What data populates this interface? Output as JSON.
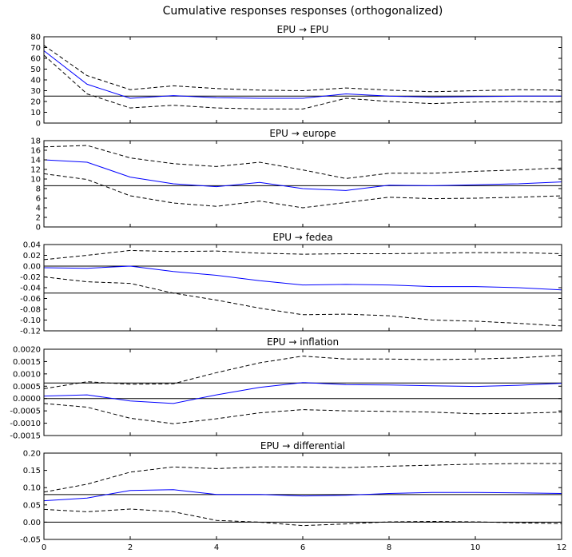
{
  "title": "Cumulative responses responses (orthogonalized)",
  "colors": {
    "irf": "#0000ff",
    "band": "#000000",
    "axis": "#000000"
  },
  "chart_data": [
    {
      "type": "line",
      "title": "EPU → EPU",
      "x": [
        0,
        1,
        2,
        3,
        4,
        5,
        6,
        7,
        8,
        9,
        10,
        11,
        12
      ],
      "xlim": [
        0,
        12
      ],
      "ylim": [
        0,
        80
      ],
      "yticks": [
        0,
        10,
        20,
        30,
        40,
        50,
        60,
        70,
        80
      ],
      "ytick_labels": [
        "0",
        "10",
        "20",
        "30",
        "40",
        "50",
        "60",
        "70",
        "80"
      ],
      "hlines": [
        25
      ],
      "series": [
        {
          "role": "irf",
          "values": [
            67,
            36,
            23,
            25.5,
            23.5,
            23,
            23,
            27,
            25,
            24,
            24.5,
            25,
            25
          ]
        },
        {
          "role": "upper",
          "values": [
            72,
            44,
            31,
            34.5,
            32,
            30.5,
            30,
            32.5,
            30.5,
            29,
            30,
            31,
            30.5
          ]
        },
        {
          "role": "lower",
          "values": [
            63,
            27,
            14,
            16.5,
            14,
            13,
            13,
            23,
            20,
            18,
            19.5,
            20,
            19.5
          ]
        }
      ]
    },
    {
      "type": "line",
      "title": "EPU → europe",
      "x": [
        0,
        1,
        2,
        3,
        4,
        5,
        6,
        7,
        8,
        9,
        10,
        11,
        12
      ],
      "xlim": [
        0,
        12
      ],
      "ylim": [
        0,
        18
      ],
      "yticks": [
        0,
        2,
        4,
        6,
        8,
        10,
        12,
        14,
        16,
        18
      ],
      "ytick_labels": [
        "0",
        "2",
        "4",
        "6",
        "8",
        "10",
        "12",
        "14",
        "16",
        "18"
      ],
      "hlines": [
        8.6
      ],
      "series": [
        {
          "role": "irf",
          "values": [
            14,
            13.5,
            10.4,
            9,
            8.4,
            9.3,
            8,
            7.6,
            8.7,
            8.6,
            8.8,
            9,
            9.4
          ]
        },
        {
          "role": "upper",
          "values": [
            16.7,
            17,
            14.4,
            13.2,
            12.6,
            13.5,
            11.9,
            10.1,
            11.2,
            11.2,
            11.6,
            11.9,
            12.3
          ]
        },
        {
          "role": "lower",
          "values": [
            11.1,
            9.9,
            6.5,
            5,
            4.3,
            5.4,
            4,
            5.1,
            6.2,
            5.9,
            6,
            6.2,
            6.5
          ]
        }
      ]
    },
    {
      "type": "line",
      "title": "EPU → fedea",
      "x": [
        0,
        1,
        2,
        3,
        4,
        5,
        6,
        7,
        8,
        9,
        10,
        11,
        12
      ],
      "xlim": [
        0,
        12
      ],
      "ylim": [
        -0.12,
        0.04
      ],
      "yticks": [
        -0.12,
        -0.1,
        -0.08,
        -0.06,
        -0.04,
        -0.02,
        0,
        0.02,
        0.04
      ],
      "ytick_labels": [
        "-0.12",
        "-0.10",
        "-0.08",
        "-0.06",
        "-0.04",
        "-0.02",
        "0.00",
        "0.02",
        "0.04"
      ],
      "hlines": [
        0,
        -0.05
      ],
      "series": [
        {
          "role": "irf",
          "values": [
            -0.003,
            -0.004,
            0,
            -0.01,
            -0.017,
            -0.027,
            -0.035,
            -0.034,
            -0.035,
            -0.038,
            -0.038,
            -0.04,
            -0.044
          ]
        },
        {
          "role": "upper",
          "values": [
            0.012,
            0.02,
            0.029,
            0.027,
            0.028,
            0.024,
            0.022,
            0.023,
            0.023,
            0.024,
            0.025,
            0.025,
            0.023
          ]
        },
        {
          "role": "lower",
          "values": [
            -0.02,
            -0.029,
            -0.032,
            -0.05,
            -0.063,
            -0.078,
            -0.09,
            -0.089,
            -0.092,
            -0.1,
            -0.102,
            -0.106,
            -0.111
          ]
        }
      ]
    },
    {
      "type": "line",
      "title": "EPU → inflation",
      "x": [
        0,
        1,
        2,
        3,
        4,
        5,
        6,
        7,
        8,
        9,
        10,
        11,
        12
      ],
      "xlim": [
        0,
        12
      ],
      "ylim": [
        -0.0015,
        0.002
      ],
      "yticks": [
        -0.0015,
        -0.001,
        -0.0005,
        0,
        0.0005,
        0.001,
        0.0015,
        0.002
      ],
      "ytick_labels": [
        "-0.0015",
        "-0.0010",
        "-0.0005",
        "0.0000",
        "0.0005",
        "0.0010",
        "0.0015",
        "0.0020"
      ],
      "hlines": [
        0,
        0.00063
      ],
      "series": [
        {
          "role": "irf",
          "values": [
            0.0001,
            0.00015,
            -0.0001,
            -0.0002,
            0.00015,
            0.00045,
            0.00065,
            0.00056,
            0.00055,
            0.00052,
            0.00049,
            0.00054,
            0.00062
          ]
        },
        {
          "role": "upper",
          "values": [
            0.0004,
            0.00068,
            0.00058,
            0.0006,
            0.00105,
            0.00145,
            0.00172,
            0.0016,
            0.0016,
            0.00158,
            0.0016,
            0.00165,
            0.00175
          ]
        },
        {
          "role": "lower",
          "values": [
            -0.0002,
            -0.00035,
            -0.0008,
            -0.00102,
            -0.00082,
            -0.00058,
            -0.00045,
            -0.0005,
            -0.00052,
            -0.00055,
            -0.00062,
            -0.0006,
            -0.00055
          ]
        }
      ]
    },
    {
      "type": "line",
      "title": "EPU → differential",
      "x": [
        0,
        1,
        2,
        3,
        4,
        5,
        6,
        7,
        8,
        9,
        10,
        11,
        12
      ],
      "xlim": [
        0,
        12
      ],
      "ylim": [
        -0.05,
        0.2
      ],
      "yticks": [
        -0.05,
        0,
        0.05,
        0.1,
        0.15,
        0.2
      ],
      "ytick_labels": [
        "-0.05",
        "0.00",
        "0.05",
        "0.10",
        "0.15",
        "0.20"
      ],
      "xticks": [
        0,
        2,
        4,
        6,
        8,
        10,
        12
      ],
      "xtick_labels": [
        "0",
        "2",
        "4",
        "6",
        "8",
        "10",
        "12"
      ],
      "hlines": [
        0,
        0.08
      ],
      "series": [
        {
          "role": "irf",
          "values": [
            0.062,
            0.07,
            0.092,
            0.094,
            0.08,
            0.08,
            0.076,
            0.078,
            0.083,
            0.086,
            0.086,
            0.085,
            0.083
          ]
        },
        {
          "role": "upper",
          "values": [
            0.087,
            0.11,
            0.145,
            0.16,
            0.155,
            0.16,
            0.16,
            0.158,
            0.162,
            0.165,
            0.168,
            0.17,
            0.17
          ]
        },
        {
          "role": "lower",
          "values": [
            0.037,
            0.03,
            0.038,
            0.03,
            0.005,
            0,
            -0.01,
            -0.005,
            0.001,
            0.002,
            0.001,
            -0.002,
            -0.004
          ]
        }
      ]
    }
  ]
}
